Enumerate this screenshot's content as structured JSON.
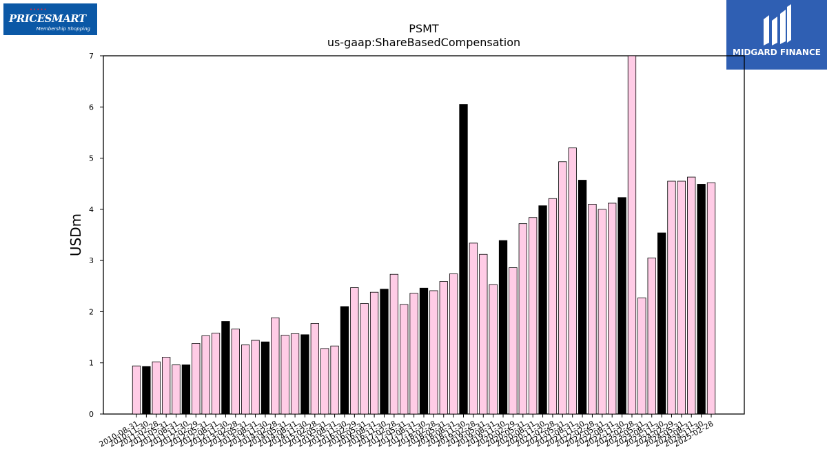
{
  "logos": {
    "left_brand": "PRICESMART",
    "left_tagline": "Membership Shopping",
    "right_brand": "MIDGARD FINANCE"
  },
  "colors": {
    "bar_pink": "#ffcce6",
    "bar_black": "#000000",
    "left_logo_bg": "#0b58a6",
    "right_logo_bg": "#2f5fb3"
  },
  "chart_data": {
    "type": "bar",
    "title": "PSMT",
    "subtitle": "us-gaap:ShareBasedCompensation",
    "xlabel": "",
    "ylabel": "USDm",
    "ylim": [
      0,
      7
    ],
    "yticks": [
      0,
      1,
      2,
      3,
      4,
      5,
      6,
      7
    ],
    "grid": false,
    "categories": [
      "2010-08-31",
      "2010-11-30",
      "2011-02-28",
      "2011-05-31",
      "2011-08-31",
      "2011-11-30",
      "2012-02-29",
      "2012-05-31",
      "2012-08-31",
      "2012-11-30",
      "2013-02-28",
      "2013-05-31",
      "2013-08-31",
      "2013-11-30",
      "2014-02-28",
      "2014-05-31",
      "2014-08-31",
      "2014-11-30",
      "2015-02-28",
      "2015-05-31",
      "2015-08-31",
      "2015-11-30",
      "2016-02-29",
      "2016-05-31",
      "2016-08-31",
      "2016-11-30",
      "2017-02-28",
      "2017-05-31",
      "2017-08-31",
      "2017-11-30",
      "2018-02-28",
      "2018-05-31",
      "2018-08-31",
      "2018-11-30",
      "2019-02-28",
      "2019-05-31",
      "2019-08-31",
      "2019-11-30",
      "2020-02-29",
      "2020-05-31",
      "2020-08-31",
      "2020-11-30",
      "2021-02-28",
      "2021-05-31",
      "2021-08-31",
      "2021-11-30",
      "2022-02-28",
      "2022-05-31",
      "2022-08-31",
      "2022-11-30",
      "2023-02-28",
      "2023-05-31",
      "2023-08-31",
      "2023-11-30",
      "2024-02-29",
      "2024-05-31",
      "2024-08-31",
      "2024-11-30",
      "2025-02-28"
    ],
    "values": [
      0.94,
      0.93,
      1.02,
      1.11,
      0.96,
      0.96,
      1.38,
      1.53,
      1.58,
      1.81,
      1.66,
      1.35,
      1.44,
      1.41,
      1.88,
      1.54,
      1.57,
      1.55,
      1.77,
      1.28,
      1.33,
      2.1,
      2.47,
      2.16,
      2.38,
      2.44,
      2.73,
      2.14,
      2.36,
      2.46,
      2.41,
      2.59,
      2.74,
      6.05,
      3.34,
      3.12,
      2.53,
      3.39,
      2.86,
      3.72,
      3.84,
      4.07,
      4.21,
      4.93,
      5.2,
      4.57,
      4.1,
      4.0,
      4.12,
      4.23,
      7.0,
      2.27,
      3.05,
      3.54,
      4.55,
      4.55,
      4.63,
      4.49,
      4.52
    ],
    "highlight_indices": [
      1,
      5,
      9,
      13,
      17,
      21,
      25,
      29,
      33,
      37,
      41,
      45,
      49,
      53,
      57
    ]
  }
}
